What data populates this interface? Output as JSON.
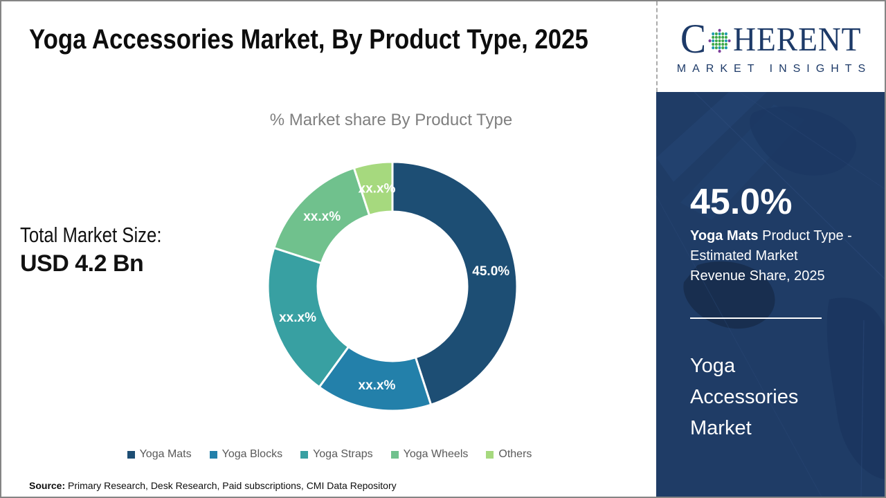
{
  "page": {
    "bg": "#ffffff",
    "border_color": "#848484"
  },
  "header": {
    "title": "Yoga Accessories Market, By Product Type, 2025",
    "logo": {
      "text_c": "C",
      "text_rest": "HERENT",
      "subtitle": "MARKET INSIGHTS",
      "navy": "#1d3a68",
      "globe_colors": {
        "green": "#3fa94c",
        "teal": "#1d9bb0",
        "magenta": "#bf3a9c",
        "purple": "#7d3f9b"
      }
    }
  },
  "left_panel": {
    "total_label": "Total Market Size:",
    "total_value": "USD 4.2 Bn"
  },
  "chart_data": {
    "type": "donut",
    "title": "% Market share By Product Type",
    "categories": [
      "Yoga Mats",
      "Yoga Blocks",
      "Yoga Straps",
      "Yoga Wheels",
      "Others"
    ],
    "values": [
      45.0,
      15.0,
      20.0,
      15.0,
      5.0
    ],
    "value_labels": [
      "45.0%",
      "xx.x%",
      "xx.x%",
      "xx.x%",
      "xx.x%"
    ],
    "colors": [
      "#1d4e74",
      "#2380aa",
      "#38a0a2",
      "#70c18d",
      "#a6d97e"
    ],
    "label_color": "#ffffff",
    "legend_position": "bottom",
    "legend_text_color": "#595959",
    "start_angle_deg": 0,
    "inner_radius_ratio": 0.6
  },
  "sidebar": {
    "bg_color": "#1f3c66",
    "stat_value": "45.0%",
    "stat_desc_bold": "Yoga Mats",
    "stat_desc_line1_rest": " Product Type -",
    "stat_desc_line2": "Estimated Market",
    "stat_desc_line3": "Revenue Share, 2025",
    "market_name": "Yoga Accessories Market"
  },
  "footer": {
    "source_label": "Source:",
    "source_text": " Primary Research, Desk Research, Paid subscriptions, CMI Data Repository"
  }
}
